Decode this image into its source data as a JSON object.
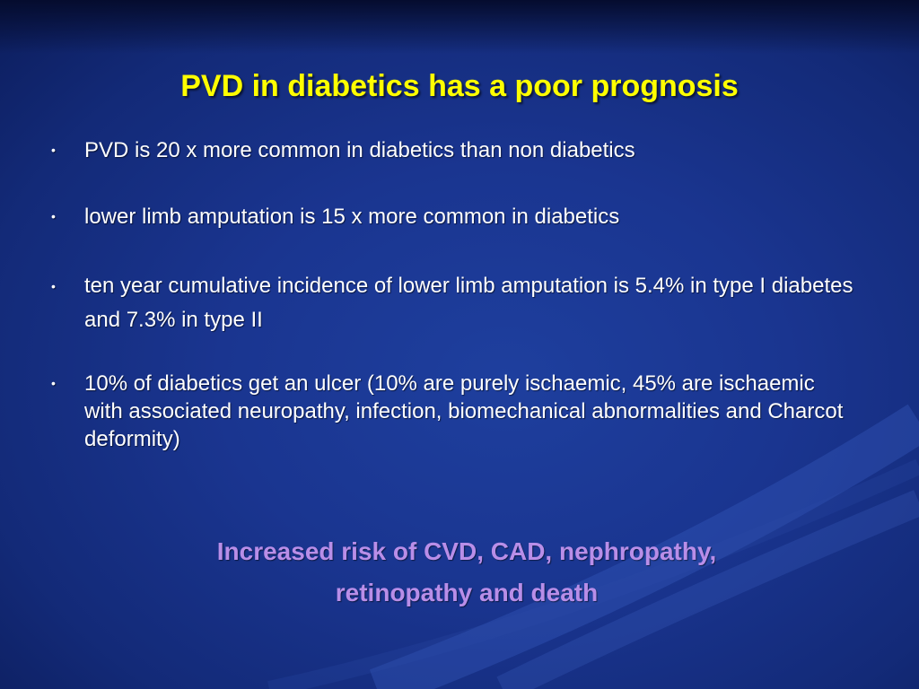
{
  "slide": {
    "title": "PVD in diabetics has a poor prognosis",
    "bullet_glyph": "•",
    "bullets": [
      "PVD is 20 x more common in diabetics than non diabetics",
      "lower limb amputation is 15 x more common in diabetics",
      "ten year cumulative incidence of lower limb amputation is 5.4% in type I diabetes and 7.3% in type II",
      "10% of diabetics get an ulcer (10% are purely ischaemic, 45% are ischaemic with associated neuropathy, infection, biomechanical abnormalities and Charcot deformity)"
    ],
    "closing_line1": "Increased risk of CVD, CAD, nephropathy,",
    "closing_line2": "retinopathy and death"
  },
  "colors": {
    "background": "#1a3590",
    "title": "#ffff00",
    "body_text": "#ffffff",
    "closing_text": "#b98ee8"
  }
}
